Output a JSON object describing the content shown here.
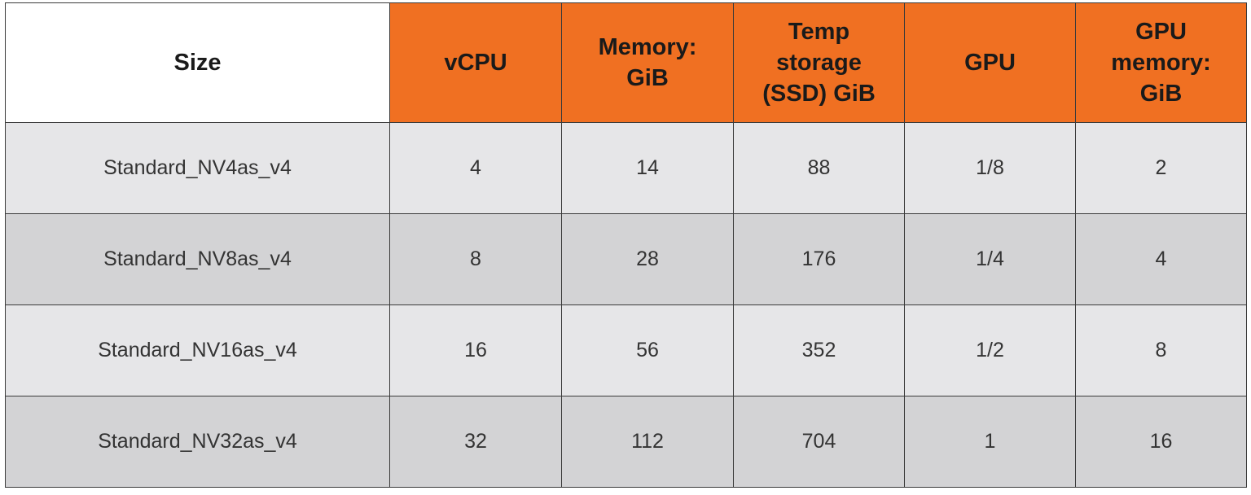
{
  "table": {
    "header": [
      [
        "Size"
      ],
      [
        "vCPU"
      ],
      [
        "Memory:",
        "GiB"
      ],
      [
        "Temp",
        "storage",
        "(SSD) GiB"
      ],
      [
        "GPU"
      ],
      [
        "GPU",
        "memory:",
        "GiB"
      ]
    ],
    "rows": [
      [
        "Standard_NV4as_v4",
        4,
        14,
        88,
        "1/8",
        2
      ],
      [
        "Standard_NV8as_v4",
        8,
        28,
        176,
        "1/4",
        4
      ],
      [
        "Standard_NV16as_v4",
        16,
        56,
        352,
        "1/2",
        8
      ],
      [
        "Standard_NV32as_v4",
        32,
        112,
        704,
        1,
        16
      ]
    ]
  }
}
